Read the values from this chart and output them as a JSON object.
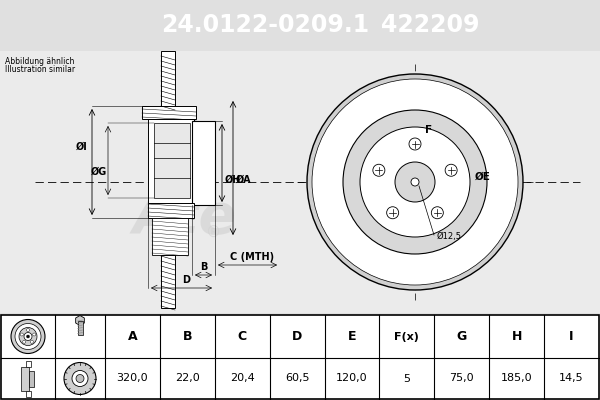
{
  "title_part": "24.0122-0209.1",
  "title_code": "422209",
  "title_bg": "#0000cc",
  "note_line1": "Abbildung ähnlich",
  "note_line2": "Illustration similar",
  "table_headers": [
    "A",
    "B",
    "C",
    "D",
    "E",
    "F(x)",
    "G",
    "H",
    "I"
  ],
  "table_values": [
    "320,0",
    "22,0",
    "20,4",
    "60,5",
    "120,0",
    "5",
    "75,0",
    "185,0",
    "14,5"
  ],
  "bg_color": "#e0e0e0",
  "white": "#ffffff",
  "black": "#000000",
  "hatch_color": "#555555",
  "gray_fill": "#c8c8c8",
  "watermark_color": "#d0d0d0"
}
